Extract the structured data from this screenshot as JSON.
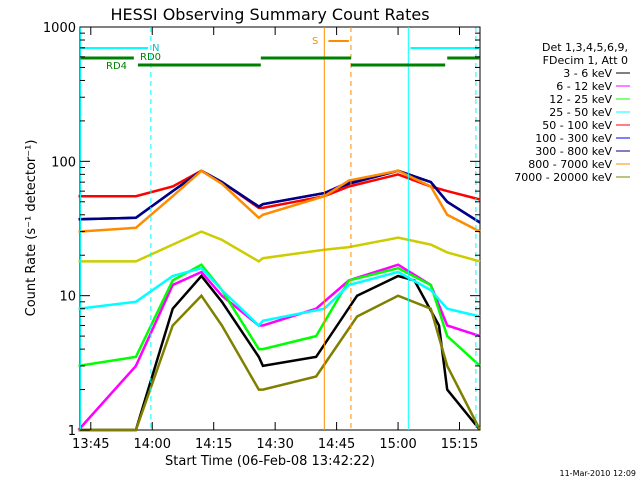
{
  "chart_data": {
    "type": "line",
    "title": "HESSI Observing Summary Count Rates",
    "xlabel": "Start Time (06-Feb-08 13:42:22)",
    "ylabel": "Count Rate (s⁻¹ detector⁻¹)",
    "x_ticks": [
      "13:45",
      "14:00",
      "14:15",
      "14:30",
      "14:45",
      "15:00",
      "15:15"
    ],
    "y_ticks": [
      "1",
      "10",
      "100",
      "1000"
    ],
    "y_scale": "log",
    "ylim": [
      1,
      1000
    ],
    "xlim": [
      "13:42:22",
      "15:20:00"
    ],
    "grid": false,
    "legend_position": "right",
    "legend_header": [
      "Det 1,3,4,5,6,9,",
      "FDecim 1, Att 0"
    ],
    "series": [
      {
        "name": "3 - 6 keV",
        "color": "#000000",
        "x": [
          "13:42",
          "13:56",
          "14:05",
          "14:12",
          "14:17",
          "14:26",
          "14:27",
          "14:40",
          "14:50",
          "15:00",
          "15:04",
          "15:10",
          "15:12",
          "15:20"
        ],
        "values": [
          1,
          1,
          8,
          14,
          9,
          3.5,
          3,
          3.5,
          10,
          14,
          13,
          6,
          2,
          1
        ]
      },
      {
        "name": "6 - 12 keV",
        "color": "#ff00ff",
        "x": [
          "13:42",
          "13:56",
          "14:05",
          "14:12",
          "14:17",
          "14:26",
          "14:27",
          "14:40",
          "14:48",
          "15:00",
          "15:08",
          "15:12",
          "15:20"
        ],
        "values": [
          1,
          3,
          12,
          15,
          10,
          6,
          6,
          8,
          13,
          17,
          12,
          6,
          5
        ]
      },
      {
        "name": "12 - 25 keV",
        "color": "#00ff00",
        "x": [
          "13:42",
          "13:56",
          "14:05",
          "14:12",
          "14:17",
          "14:26",
          "14:27",
          "14:40",
          "14:48",
          "15:00",
          "15:08",
          "15:12",
          "15:20"
        ],
        "values": [
          3,
          3.5,
          13,
          17,
          11,
          4,
          4,
          5,
          13,
          16,
          12,
          5,
          3
        ]
      },
      {
        "name": "25 - 50 keV",
        "color": "#00ffff",
        "x": [
          "13:42",
          "13:56",
          "14:05",
          "14:12",
          "14:17",
          "14:26",
          "14:27",
          "14:42",
          "14:48",
          "15:00",
          "15:08",
          "15:12",
          "15:20"
        ],
        "values": [
          8,
          9,
          14,
          16,
          11,
          6,
          6.5,
          8,
          12,
          15,
          11,
          8,
          7
        ]
      },
      {
        "name": "50 - 100 keV",
        "color": "#ff0000",
        "x": [
          "13:42",
          "13:56",
          "14:05",
          "14:12",
          "14:17",
          "14:26",
          "14:27",
          "14:42",
          "14:48",
          "15:00",
          "15:08",
          "15:12",
          "15:20"
        ],
        "values": [
          55,
          55,
          65,
          85,
          70,
          45,
          45,
          55,
          65,
          80,
          65,
          60,
          52
        ]
      },
      {
        "name": "100 - 300 keV",
        "color": "#0000ff",
        "x": [
          "13:42",
          "13:56",
          "14:05",
          "14:12",
          "14:17",
          "14:26",
          "14:27",
          "14:42",
          "14:48",
          "15:00",
          "15:08",
          "15:12",
          "15:20"
        ],
        "values": [
          37,
          38,
          60,
          85,
          70,
          46,
          48,
          58,
          70,
          85,
          70,
          50,
          35
        ]
      },
      {
        "name": "300 - 800 keV",
        "color": "#000080",
        "x": [
          "13:42",
          "13:56",
          "14:05",
          "14:12",
          "14:17",
          "14:26",
          "14:27",
          "14:42",
          "14:48",
          "15:00",
          "15:08",
          "15:12",
          "15:20"
        ],
        "values": [
          37,
          38,
          60,
          85,
          70,
          46,
          48,
          58,
          68,
          85,
          70,
          50,
          35
        ]
      },
      {
        "name": "800 - 7000 keV",
        "color": "#ff8c00",
        "x": [
          "13:42",
          "13:56",
          "14:05",
          "14:12",
          "14:17",
          "14:26",
          "14:27",
          "14:42",
          "14:48",
          "15:00",
          "15:08",
          "15:12",
          "15:20"
        ],
        "values": [
          30,
          32,
          55,
          85,
          68,
          38,
          40,
          55,
          72,
          85,
          65,
          40,
          30
        ]
      },
      {
        "name": "7000 - 20000 keV",
        "color": "#808000",
        "x": [
          "13:42",
          "13:56",
          "14:05",
          "14:12",
          "14:17",
          "14:26",
          "14:27",
          "14:40",
          "14:50",
          "15:00",
          "15:08",
          "15:12",
          "15:20"
        ],
        "values": [
          1,
          1,
          6,
          10,
          6,
          2,
          2,
          2.5,
          7,
          10,
          8,
          3,
          1
        ]
      },
      {
        "name": "",
        "color": "#cccc00",
        "x": [
          "13:42",
          "13:56",
          "14:05",
          "14:12",
          "14:17",
          "14:26",
          "14:27",
          "14:42",
          "14:48",
          "15:00",
          "15:08",
          "15:12",
          "15:20"
        ],
        "values": [
          18,
          18,
          24,
          30,
          26,
          18,
          19,
          22,
          23,
          27,
          24,
          21,
          18
        ]
      }
    ],
    "annotations": [
      {
        "text": "N",
        "color": "#00c0c0"
      },
      {
        "text": "RD0",
        "color": "#008000"
      },
      {
        "text": "RD4",
        "color": "#008000"
      },
      {
        "text": "S",
        "color": "#ff8c00"
      }
    ],
    "footer": "11-Mar-2010 12:09"
  }
}
